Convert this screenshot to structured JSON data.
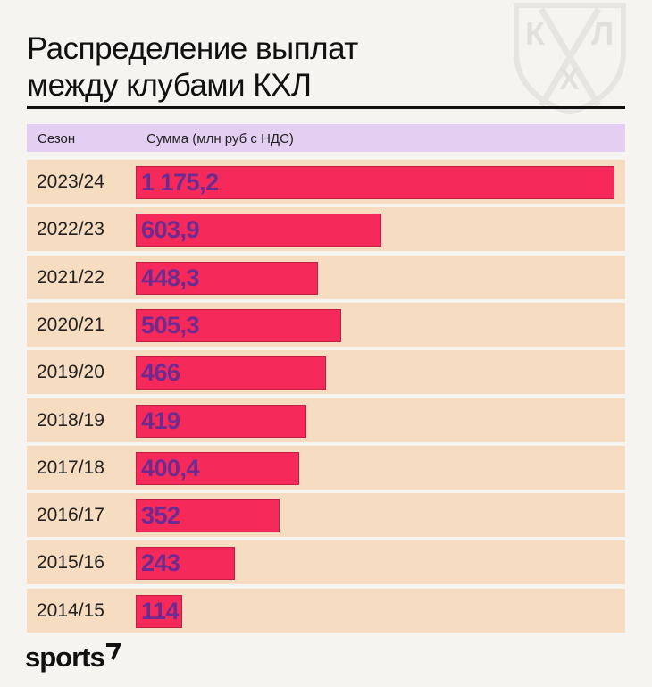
{
  "title_line1": "Распределение выплат",
  "title_line2": "между клубами КХЛ",
  "logo_letters": [
    "К",
    "Л",
    "Х"
  ],
  "brand": "sports",
  "colors": {
    "bar": "#f5295a",
    "value_text": "#6d2b92",
    "row_bg": "#f6dcc0",
    "header_bg": "#e3cff2"
  },
  "chart_data": {
    "type": "bar",
    "orientation": "horizontal",
    "column_headers": [
      "Сезон",
      "Сумма (млн руб с НДС)"
    ],
    "categories": [
      "2023/24",
      "2022/23",
      "2021/22",
      "2020/21",
      "2019/20",
      "2018/19",
      "2017/18",
      "2016/17",
      "2015/16",
      "2014/15"
    ],
    "values": [
      1175.2,
      603.9,
      448.3,
      505.3,
      466,
      419,
      400.4,
      352,
      243,
      114
    ],
    "value_labels": [
      "1 175,2",
      "603,9",
      "448,3",
      "505,3",
      "466",
      "419",
      "400,4",
      "352",
      "243",
      "114"
    ],
    "xlim": [
      0,
      1175.2
    ],
    "grid": false,
    "legend": "none"
  }
}
